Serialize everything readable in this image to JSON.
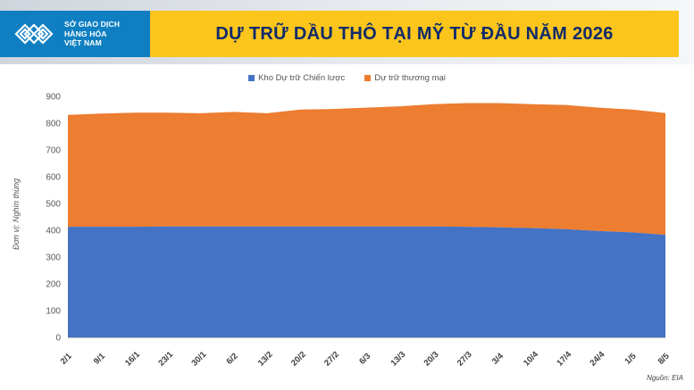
{
  "header": {
    "logo_text_lines": [
      "SỞ GIAO DỊCH",
      "HÀNG HÓA",
      "VIỆT NAM"
    ],
    "title": "DỰ TRỮ DẦU THÔ TẠI MỸ TỪ ĐẦU NĂM 2026"
  },
  "colors": {
    "brand_blue": "#0f7fc1",
    "title_yellow": "#fbc51b",
    "title_text": "#102a6b",
    "series_strategic": "#4472c4",
    "series_commercial": "#ed7d31"
  },
  "footer": {
    "source": "Nguồn: EIA"
  },
  "chart_data": {
    "type": "area",
    "stacked": true,
    "title": "DỰ TRỮ DẦU THÔ TẠI MỸ TỪ ĐẦU NĂM 2026",
    "xlabel": "",
    "ylabel": "Đơn vị: Nghìn thùng",
    "ylim": [
      0,
      900
    ],
    "yticks": [
      0,
      100,
      200,
      300,
      400,
      500,
      600,
      700,
      800,
      900
    ],
    "grid": false,
    "legend_position": "top",
    "categories": [
      "2/1",
      "9/1",
      "16/1",
      "23/1",
      "30/1",
      "6/2",
      "13/2",
      "20/2",
      "27/2",
      "6/3",
      "13/3",
      "20/3",
      "27/3",
      "3/4",
      "10/4",
      "17/4",
      "24/4",
      "1/5",
      "8/5"
    ],
    "series": [
      {
        "name": "Kho Dự trữ Chiến lược",
        "color": "#4472c4",
        "values": [
          413,
          413,
          413,
          414,
          414,
          414,
          414,
          414,
          414,
          414,
          414,
          414,
          413,
          411,
          408,
          404,
          397,
          392,
          383
        ]
      },
      {
        "name": "Dự trữ thương mại",
        "color": "#ed7d31",
        "values": [
          418,
          423,
          426,
          425,
          423,
          428,
          423,
          437,
          439,
          444,
          449,
          457,
          462,
          464,
          463,
          464,
          461,
          459,
          455
        ]
      }
    ]
  }
}
